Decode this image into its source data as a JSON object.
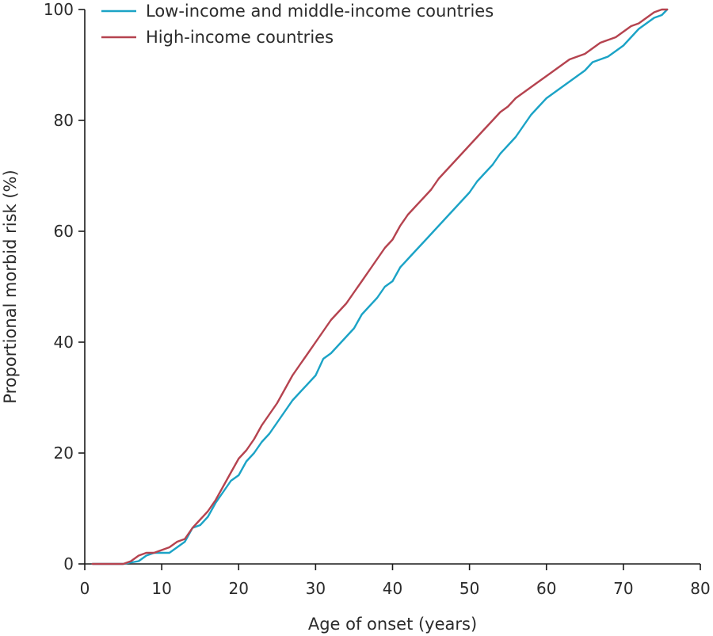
{
  "chart_data": {
    "type": "line",
    "title": "",
    "xlabel": "Age of onset (years)",
    "ylabel": "Proportional morbid risk (%)",
    "xlim": [
      0,
      80
    ],
    "ylim": [
      0,
      100
    ],
    "xticks": [
      0,
      10,
      20,
      30,
      40,
      50,
      60,
      70,
      80
    ],
    "yticks": [
      0,
      20,
      40,
      60,
      80,
      100
    ],
    "grid": false,
    "legend_position": "top-left",
    "series": [
      {
        "name": "Low-income and middle-income countries",
        "color": "#1ba3c6",
        "x": [
          1,
          5,
          7,
          8,
          9,
          10,
          11,
          12,
          13,
          14,
          15,
          16,
          17,
          18,
          19,
          20,
          21,
          22,
          23,
          24,
          25,
          26,
          27,
          28,
          29,
          30,
          31,
          32,
          33,
          34,
          35,
          36,
          37,
          38,
          39,
          40,
          41,
          42,
          43,
          44,
          45,
          46,
          47,
          48,
          49,
          50,
          51,
          52,
          53,
          54,
          55,
          56,
          57,
          58,
          59,
          60,
          61,
          62,
          63,
          64,
          65,
          66,
          67,
          68,
          69,
          70,
          71,
          72,
          73,
          74,
          75,
          75.7
        ],
        "y": [
          0,
          0,
          0.5,
          1.5,
          2,
          2,
          2,
          3,
          4,
          6.5,
          7,
          8.5,
          11,
          13,
          15,
          16,
          18.5,
          20,
          22,
          23.5,
          25.5,
          27.5,
          29.5,
          31,
          32.5,
          34,
          37,
          38,
          39.5,
          41,
          42.5,
          45,
          46.5,
          48,
          50,
          51,
          53.5,
          55,
          56.5,
          58,
          59.5,
          61,
          62.5,
          64,
          65.5,
          67,
          69,
          70.5,
          72,
          74,
          75.5,
          77,
          79,
          81,
          82.5,
          84,
          85,
          86,
          87,
          88,
          89,
          90.5,
          91,
          91.5,
          92.5,
          93.5,
          95,
          96.5,
          97.5,
          98.5,
          99,
          100
        ]
      },
      {
        "name": "High-income countries",
        "color": "#b5434f",
        "x": [
          1,
          5,
          6,
          7,
          8,
          9,
          10,
          11,
          12,
          13,
          14,
          15,
          16,
          17,
          18,
          19,
          20,
          21,
          22,
          23,
          24,
          25,
          26,
          27,
          28,
          29,
          30,
          31,
          32,
          33,
          34,
          35,
          36,
          37,
          38,
          39,
          40,
          41,
          42,
          43,
          44,
          45,
          46,
          47,
          48,
          49,
          50,
          51,
          52,
          53,
          54,
          55,
          56,
          57,
          58,
          59,
          60,
          61,
          62,
          63,
          64,
          65,
          66,
          67,
          68,
          69,
          70,
          71,
          72,
          73,
          74,
          75,
          75.7
        ],
        "y": [
          0,
          0,
          0.5,
          1.5,
          2,
          2,
          2.5,
          3,
          4,
          4.5,
          6.5,
          8,
          9.5,
          11.5,
          14,
          16.5,
          19,
          20.5,
          22.5,
          25,
          27,
          29,
          31.5,
          34,
          36,
          38,
          40,
          42,
          44,
          45.5,
          47,
          49,
          51,
          53,
          55,
          57,
          58.5,
          61,
          63,
          64.5,
          66,
          67.5,
          69.5,
          71,
          72.5,
          74,
          75.5,
          77,
          78.5,
          80,
          81.5,
          82.5,
          84,
          85,
          86,
          87,
          88,
          89,
          90,
          91,
          91.5,
          92,
          93,
          94,
          94.5,
          95,
          96,
          97,
          97.5,
          98.5,
          99.5,
          100,
          100
        ]
      }
    ]
  }
}
